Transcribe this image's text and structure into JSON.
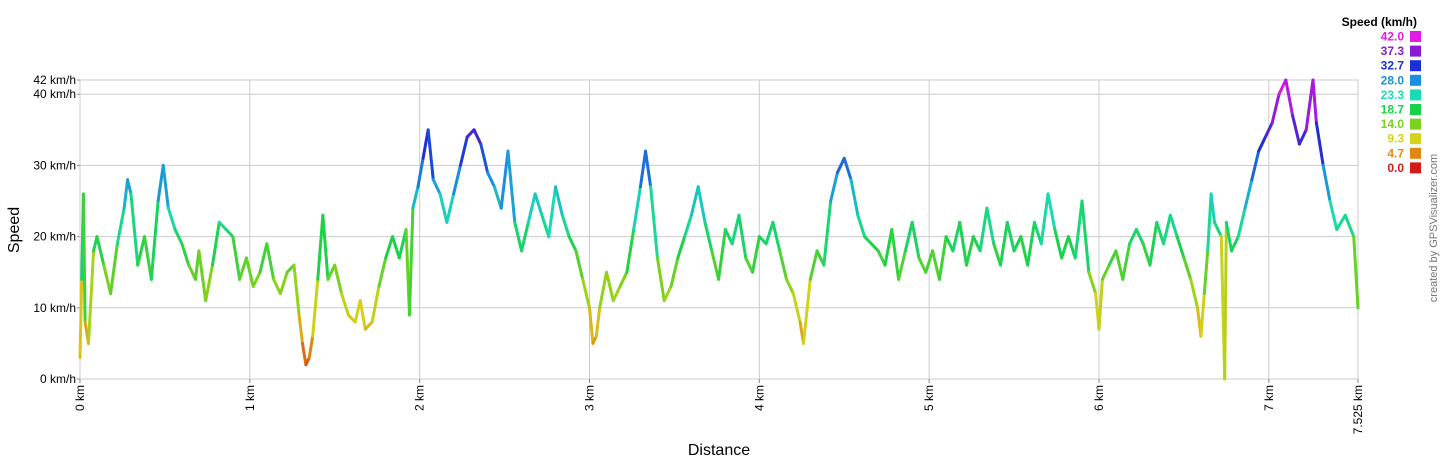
{
  "chart_data": {
    "type": "line",
    "title": "",
    "xlabel": "Distance",
    "ylabel": "Speed",
    "xlim": [
      0,
      7.525
    ],
    "ylim": [
      0,
      42
    ],
    "grid": true,
    "x_ticks": [
      {
        "value": 0,
        "label": "0 km"
      },
      {
        "value": 1,
        "label": "1 km"
      },
      {
        "value": 2,
        "label": "2 km"
      },
      {
        "value": 3,
        "label": "3 km"
      },
      {
        "value": 4,
        "label": "4 km"
      },
      {
        "value": 5,
        "label": "5 km"
      },
      {
        "value": 6,
        "label": "6 km"
      },
      {
        "value": 7,
        "label": "7 km"
      },
      {
        "value": 7.525,
        "label": "7.525 km"
      }
    ],
    "y_ticks": [
      {
        "value": 0,
        "label": "0 km/h"
      },
      {
        "value": 10,
        "label": "10 km/h"
      },
      {
        "value": 20,
        "label": "20 km/h"
      },
      {
        "value": 30,
        "label": "30 km/h"
      },
      {
        "value": 40,
        "label": "40 km/h"
      },
      {
        "value": 42,
        "label": "42 km/h"
      }
    ],
    "legend": {
      "title": "Speed (km/h)",
      "position": "top-right",
      "entries": [
        {
          "label": "42.0",
          "color": "#e619e6"
        },
        {
          "label": "37.3",
          "color": "#8a19d6"
        },
        {
          "label": "32.7",
          "color": "#1a2fd6"
        },
        {
          "label": "28.0",
          "color": "#1a8fe0"
        },
        {
          "label": "23.3",
          "color": "#19dcb4"
        },
        {
          "label": "18.7",
          "color": "#19d24a"
        },
        {
          "label": "14.0",
          "color": "#7ad21a"
        },
        {
          "label": "9.3",
          "color": "#d6d21a"
        },
        {
          "label": "4.7",
          "color": "#e08a14"
        },
        {
          "label": "0.0",
          "color": "#d61a14"
        }
      ]
    },
    "series": [
      {
        "color_by": "speed",
        "points": [
          [
            0.0,
            3
          ],
          [
            0.01,
            14
          ],
          [
            0.02,
            26
          ],
          [
            0.03,
            8
          ],
          [
            0.05,
            5
          ],
          [
            0.08,
            18
          ],
          [
            0.1,
            20
          ],
          [
            0.14,
            16
          ],
          [
            0.18,
            12
          ],
          [
            0.22,
            19
          ],
          [
            0.26,
            24
          ],
          [
            0.28,
            28
          ],
          [
            0.3,
            26
          ],
          [
            0.34,
            16
          ],
          [
            0.38,
            20
          ],
          [
            0.42,
            14
          ],
          [
            0.46,
            25
          ],
          [
            0.49,
            30
          ],
          [
            0.52,
            24
          ],
          [
            0.56,
            21
          ],
          [
            0.6,
            19
          ],
          [
            0.64,
            16
          ],
          [
            0.68,
            14
          ],
          [
            0.7,
            18
          ],
          [
            0.74,
            11
          ],
          [
            0.78,
            16
          ],
          [
            0.82,
            22
          ],
          [
            0.86,
            21
          ],
          [
            0.9,
            20
          ],
          [
            0.94,
            14
          ],
          [
            0.98,
            17
          ],
          [
            1.02,
            13
          ],
          [
            1.06,
            15
          ],
          [
            1.1,
            19
          ],
          [
            1.14,
            14
          ],
          [
            1.18,
            12
          ],
          [
            1.22,
            15
          ],
          [
            1.26,
            16
          ],
          [
            1.29,
            9
          ],
          [
            1.31,
            5
          ],
          [
            1.33,
            2
          ],
          [
            1.35,
            3
          ],
          [
            1.37,
            6
          ],
          [
            1.4,
            14
          ],
          [
            1.43,
            23
          ],
          [
            1.46,
            14
          ],
          [
            1.5,
            16
          ],
          [
            1.54,
            12
          ],
          [
            1.58,
            9
          ],
          [
            1.62,
            8
          ],
          [
            1.65,
            11
          ],
          [
            1.68,
            7
          ],
          [
            1.72,
            8
          ],
          [
            1.76,
            13
          ],
          [
            1.8,
            17
          ],
          [
            1.84,
            20
          ],
          [
            1.88,
            17
          ],
          [
            1.92,
            21
          ],
          [
            1.94,
            9
          ],
          [
            1.96,
            24
          ],
          [
            1.99,
            27
          ],
          [
            2.02,
            31
          ],
          [
            2.05,
            35
          ],
          [
            2.08,
            28
          ],
          [
            2.12,
            26
          ],
          [
            2.16,
            22
          ],
          [
            2.2,
            26
          ],
          [
            2.24,
            30
          ],
          [
            2.28,
            34
          ],
          [
            2.32,
            35
          ],
          [
            2.36,
            33
          ],
          [
            2.4,
            29
          ],
          [
            2.44,
            27
          ],
          [
            2.48,
            24
          ],
          [
            2.52,
            32
          ],
          [
            2.56,
            22
          ],
          [
            2.6,
            18
          ],
          [
            2.64,
            22
          ],
          [
            2.68,
            26
          ],
          [
            2.72,
            23
          ],
          [
            2.76,
            20
          ],
          [
            2.8,
            27
          ],
          [
            2.84,
            23
          ],
          [
            2.88,
            20
          ],
          [
            2.92,
            18
          ],
          [
            2.96,
            14
          ],
          [
            3.0,
            10
          ],
          [
            3.02,
            5
          ],
          [
            3.04,
            6
          ],
          [
            3.06,
            10
          ],
          [
            3.1,
            15
          ],
          [
            3.14,
            11
          ],
          [
            3.18,
            13
          ],
          [
            3.22,
            15
          ],
          [
            3.26,
            21
          ],
          [
            3.3,
            27
          ],
          [
            3.33,
            32
          ],
          [
            3.36,
            27
          ],
          [
            3.4,
            17
          ],
          [
            3.44,
            11
          ],
          [
            3.48,
            13
          ],
          [
            3.52,
            17
          ],
          [
            3.56,
            20
          ],
          [
            3.6,
            23
          ],
          [
            3.64,
            27
          ],
          [
            3.68,
            22
          ],
          [
            3.72,
            18
          ],
          [
            3.76,
            14
          ],
          [
            3.8,
            21
          ],
          [
            3.84,
            19
          ],
          [
            3.88,
            23
          ],
          [
            3.92,
            17
          ],
          [
            3.96,
            15
          ],
          [
            4.0,
            20
          ],
          [
            4.04,
            19
          ],
          [
            4.08,
            22
          ],
          [
            4.12,
            18
          ],
          [
            4.16,
            14
          ],
          [
            4.2,
            12
          ],
          [
            4.24,
            8
          ],
          [
            4.26,
            5
          ],
          [
            4.3,
            14
          ],
          [
            4.34,
            18
          ],
          [
            4.38,
            16
          ],
          [
            4.42,
            25
          ],
          [
            4.46,
            29
          ],
          [
            4.5,
            31
          ],
          [
            4.54,
            28
          ],
          [
            4.58,
            23
          ],
          [
            4.62,
            20
          ],
          [
            4.66,
            19
          ],
          [
            4.7,
            18
          ],
          [
            4.74,
            16
          ],
          [
            4.78,
            21
          ],
          [
            4.82,
            14
          ],
          [
            4.86,
            18
          ],
          [
            4.9,
            22
          ],
          [
            4.94,
            17
          ],
          [
            4.98,
            15
          ],
          [
            5.02,
            18
          ],
          [
            5.06,
            14
          ],
          [
            5.1,
            20
          ],
          [
            5.14,
            18
          ],
          [
            5.18,
            22
          ],
          [
            5.22,
            16
          ],
          [
            5.26,
            20
          ],
          [
            5.3,
            18
          ],
          [
            5.34,
            24
          ],
          [
            5.38,
            19
          ],
          [
            5.42,
            16
          ],
          [
            5.46,
            22
          ],
          [
            5.5,
            18
          ],
          [
            5.54,
            20
          ],
          [
            5.58,
            16
          ],
          [
            5.62,
            22
          ],
          [
            5.66,
            19
          ],
          [
            5.7,
            26
          ],
          [
            5.74,
            21
          ],
          [
            5.78,
            17
          ],
          [
            5.82,
            20
          ],
          [
            5.86,
            17
          ],
          [
            5.9,
            25
          ],
          [
            5.94,
            15
          ],
          [
            5.98,
            12
          ],
          [
            6.0,
            7
          ],
          [
            6.02,
            14
          ],
          [
            6.06,
            16
          ],
          [
            6.1,
            18
          ],
          [
            6.14,
            14
          ],
          [
            6.18,
            19
          ],
          [
            6.22,
            21
          ],
          [
            6.26,
            19
          ],
          [
            6.3,
            16
          ],
          [
            6.34,
            22
          ],
          [
            6.38,
            19
          ],
          [
            6.42,
            23
          ],
          [
            6.46,
            20
          ],
          [
            6.5,
            17
          ],
          [
            6.54,
            14
          ],
          [
            6.58,
            10
          ],
          [
            6.6,
            6
          ],
          [
            6.62,
            12
          ],
          [
            6.64,
            18
          ],
          [
            6.66,
            26
          ],
          [
            6.68,
            22
          ],
          [
            6.72,
            20
          ],
          [
            6.74,
            0
          ],
          [
            6.75,
            22
          ],
          [
            6.78,
            18
          ],
          [
            6.82,
            20
          ],
          [
            6.86,
            24
          ],
          [
            6.9,
            28
          ],
          [
            6.94,
            32
          ],
          [
            6.98,
            34
          ],
          [
            7.02,
            36
          ],
          [
            7.06,
            40
          ],
          [
            7.1,
            42
          ],
          [
            7.14,
            37
          ],
          [
            7.18,
            33
          ],
          [
            7.22,
            35
          ],
          [
            7.26,
            42
          ],
          [
            7.28,
            36
          ],
          [
            7.32,
            30
          ],
          [
            7.36,
            25
          ],
          [
            7.4,
            21
          ],
          [
            7.45,
            23
          ],
          [
            7.5,
            20
          ],
          [
            7.525,
            10
          ]
        ]
      }
    ]
  },
  "credit": "created by GPSVisualizer.com"
}
